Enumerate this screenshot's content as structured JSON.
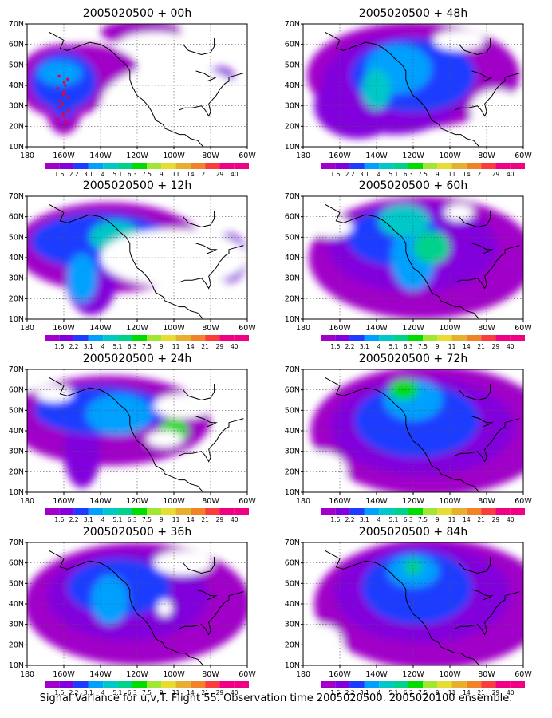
{
  "colorbar": {
    "labels": [
      "1.6",
      "2.2",
      "3.1",
      "4",
      "5.1",
      "6.3",
      "7.5",
      "9",
      "11",
      "14",
      "21",
      "29",
      "40"
    ],
    "colors": [
      "#a000c8",
      "#8200dc",
      "#1e3cff",
      "#00a0ff",
      "#00c8c8",
      "#00d28c",
      "#00dc00",
      "#a0e632",
      "#e6dc32",
      "#e6af2d",
      "#f08228",
      "#fa3c3c",
      "#f00082"
    ]
  },
  "axes": {
    "x_ticks": [
      "180",
      "160W",
      "140W",
      "120W",
      "100W",
      "80W",
      "60W"
    ],
    "y_ticks": [
      "10N",
      "20N",
      "30N",
      "40N",
      "50N",
      "60N",
      "70N"
    ],
    "lon_range": [
      180,
      60
    ],
    "lat_range": [
      10,
      70
    ]
  },
  "map_style": {
    "background": "#ffffff",
    "coast_color": "#000000",
    "grid": "dotted"
  },
  "panels": [
    {
      "title": "2005020500 + 00h",
      "observations": "red dots near 160W, 22N–45N"
    },
    {
      "title": "2005020500 + 48h"
    },
    {
      "title": "2005020500 + 12h"
    },
    {
      "title": "2005020500 + 60h"
    },
    {
      "title": "2005020500 + 24h"
    },
    {
      "title": "2005020500 + 72h"
    },
    {
      "title": "2005020500 + 36h"
    },
    {
      "title": "2005020500 + 84h"
    }
  ],
  "caption": "Signal Variance for u,v,T. Flight 55. Observation time 2005020500. 2005020100 ensemble."
}
